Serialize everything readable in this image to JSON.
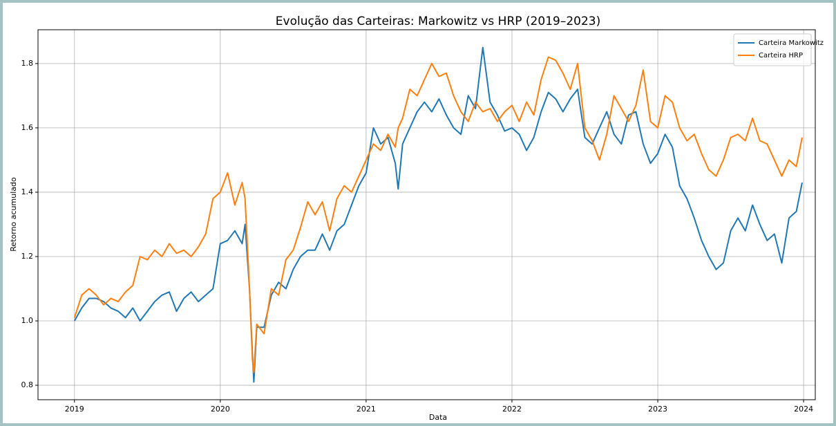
{
  "chart_data": {
    "type": "line",
    "title": "Evolução das Carteiras: Markowitz vs HRP (2019–2023)",
    "xlabel": "Data",
    "ylabel": "Retorno acumulado",
    "x": [
      2019.0,
      2019.05,
      2019.1,
      2019.15,
      2019.2,
      2019.25,
      2019.3,
      2019.35,
      2019.4,
      2019.45,
      2019.5,
      2019.55,
      2019.6,
      2019.65,
      2019.7,
      2019.75,
      2019.8,
      2019.85,
      2019.9,
      2019.95,
      2020.0,
      2020.05,
      2020.1,
      2020.15,
      2020.17,
      2020.2,
      2020.22,
      2020.23,
      2020.25,
      2020.3,
      2020.35,
      2020.4,
      2020.45,
      2020.5,
      2020.55,
      2020.6,
      2020.65,
      2020.7,
      2020.75,
      2020.8,
      2020.85,
      2020.9,
      2020.95,
      2021.0,
      2021.05,
      2021.1,
      2021.15,
      2021.2,
      2021.22,
      2021.25,
      2021.3,
      2021.35,
      2021.4,
      2021.45,
      2021.5,
      2021.55,
      2021.6,
      2021.65,
      2021.7,
      2021.75,
      2021.8,
      2021.85,
      2021.9,
      2021.95,
      2022.0,
      2022.05,
      2022.1,
      2022.15,
      2022.2,
      2022.25,
      2022.3,
      2022.35,
      2022.4,
      2022.45,
      2022.5,
      2022.55,
      2022.6,
      2022.65,
      2022.7,
      2022.75,
      2022.8,
      2022.85,
      2022.9,
      2022.95,
      2023.0,
      2023.05,
      2023.1,
      2023.15,
      2023.2,
      2023.25,
      2023.3,
      2023.35,
      2023.4,
      2023.45,
      2023.5,
      2023.55,
      2023.6,
      2023.65,
      2023.7,
      2023.75,
      2023.8,
      2023.85,
      2023.9,
      2023.95,
      2023.99
    ],
    "series": [
      {
        "name": "Carteira Markowitz",
        "color": "#1f77b4",
        "values": [
          1.0,
          1.04,
          1.07,
          1.07,
          1.06,
          1.04,
          1.03,
          1.01,
          1.04,
          1.0,
          1.03,
          1.06,
          1.08,
          1.09,
          1.03,
          1.07,
          1.09,
          1.06,
          1.08,
          1.1,
          1.24,
          1.25,
          1.28,
          1.24,
          1.3,
          1.1,
          0.9,
          0.81,
          0.98,
          0.98,
          1.08,
          1.12,
          1.1,
          1.16,
          1.2,
          1.22,
          1.22,
          1.27,
          1.22,
          1.28,
          1.3,
          1.36,
          1.42,
          1.46,
          1.6,
          1.55,
          1.57,
          1.49,
          1.41,
          1.55,
          1.6,
          1.65,
          1.68,
          1.65,
          1.69,
          1.64,
          1.6,
          1.58,
          1.7,
          1.66,
          1.85,
          1.68,
          1.64,
          1.59,
          1.6,
          1.58,
          1.53,
          1.57,
          1.65,
          1.71,
          1.69,
          1.65,
          1.69,
          1.72,
          1.57,
          1.55,
          1.6,
          1.65,
          1.58,
          1.55,
          1.64,
          1.65,
          1.55,
          1.49,
          1.52,
          1.58,
          1.54,
          1.42,
          1.38,
          1.32,
          1.25,
          1.2,
          1.16,
          1.18,
          1.28,
          1.32,
          1.28,
          1.36,
          1.3,
          1.25,
          1.27,
          1.18,
          1.32,
          1.34,
          1.43
        ]
      },
      {
        "name": "Carteira HRP",
        "color": "#ff7f0e",
        "values": [
          1.01,
          1.08,
          1.1,
          1.08,
          1.05,
          1.07,
          1.06,
          1.09,
          1.11,
          1.2,
          1.19,
          1.22,
          1.2,
          1.24,
          1.21,
          1.22,
          1.2,
          1.23,
          1.27,
          1.38,
          1.4,
          1.46,
          1.36,
          1.43,
          1.38,
          1.1,
          0.88,
          0.84,
          0.99,
          0.96,
          1.1,
          1.08,
          1.19,
          1.22,
          1.29,
          1.37,
          1.33,
          1.37,
          1.28,
          1.38,
          1.42,
          1.4,
          1.45,
          1.5,
          1.55,
          1.53,
          1.58,
          1.54,
          1.6,
          1.63,
          1.72,
          1.7,
          1.75,
          1.8,
          1.76,
          1.77,
          1.7,
          1.65,
          1.62,
          1.68,
          1.65,
          1.66,
          1.62,
          1.65,
          1.67,
          1.62,
          1.68,
          1.64,
          1.75,
          1.82,
          1.81,
          1.77,
          1.72,
          1.8,
          1.6,
          1.56,
          1.5,
          1.58,
          1.7,
          1.66,
          1.62,
          1.67,
          1.78,
          1.62,
          1.6,
          1.7,
          1.68,
          1.6,
          1.56,
          1.58,
          1.52,
          1.47,
          1.45,
          1.5,
          1.57,
          1.58,
          1.56,
          1.63,
          1.56,
          1.55,
          1.5,
          1.45,
          1.5,
          1.48,
          1.57
        ]
      }
    ],
    "xlim": [
      2018.75,
      2024.08
    ],
    "xticks": [
      2019,
      2020,
      2021,
      2022,
      2023,
      2024
    ],
    "ylim": [
      0.755,
      1.905
    ],
    "yticks": [
      0.8,
      {
        "value": 1,
        "label": "1.0"
      },
      1.2,
      1.4,
      1.6,
      1.8
    ],
    "grid": true,
    "legend": "upper right"
  }
}
